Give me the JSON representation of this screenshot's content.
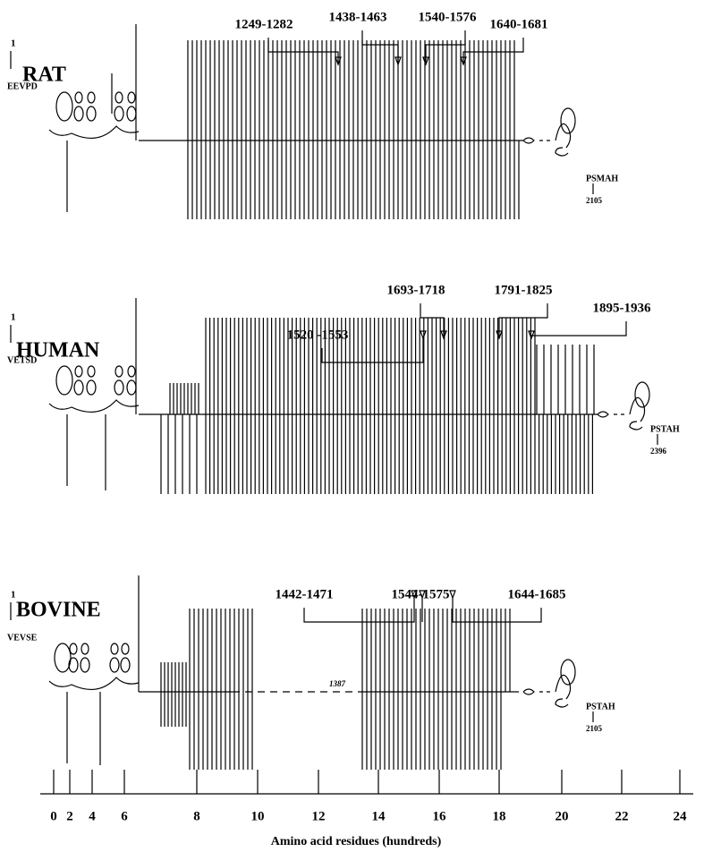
{
  "panels": [
    {
      "species": "RAT",
      "start_number": "1",
      "start_sequence": "EEVPD",
      "end_sequence": "PSMAH",
      "end_number": "2105",
      "regions": [
        "1249-1282",
        "1438-1463",
        "1540-1576",
        "1640-1681"
      ]
    },
    {
      "species": "HUMAN",
      "start_number": "1",
      "start_sequence": "VETSD",
      "end_sequence": "PSTAH",
      "end_number": "2396",
      "regions": [
        "1520 -1553",
        "1693-1718",
        "1791-1825",
        "1895-1936"
      ]
    },
    {
      "species": "BOVINE",
      "start_number": "1",
      "start_sequence": "VEVSE",
      "end_sequence": "PSTAH",
      "end_number": "2105",
      "gap_label": "1387",
      "regions": [
        "1442-1471",
        "1544-1575",
        "1644-1685"
      ]
    }
  ],
  "axis": {
    "ticks": [
      "0",
      "2",
      "4",
      "6",
      "8",
      "10",
      "12",
      "14",
      "16",
      "18",
      "20",
      "22",
      "24"
    ],
    "title": "Amino acid residues (hundreds)"
  }
}
